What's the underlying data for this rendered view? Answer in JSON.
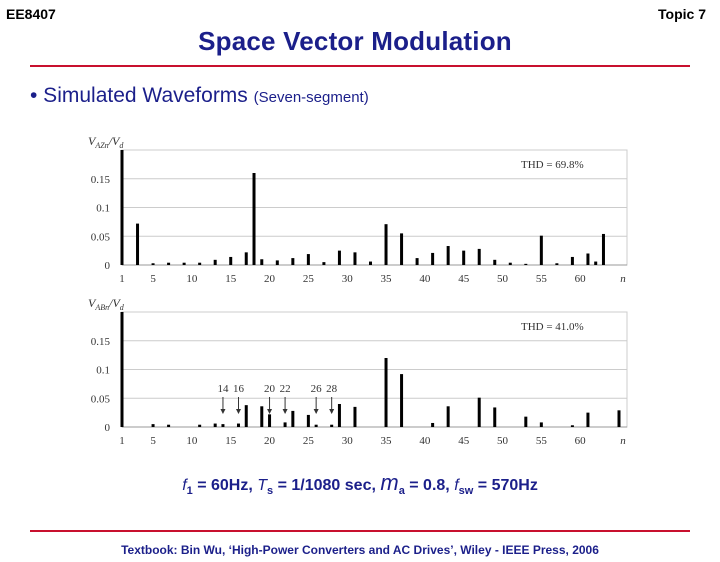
{
  "header": {
    "course": "EE8407",
    "topic": "Topic 7",
    "title": "Space Vector Modulation"
  },
  "bullet": {
    "text": "• Simulated Waveforms",
    "sub": "(Seven-segment)"
  },
  "params": {
    "f1_sym": "f",
    "f1_sub": "1",
    "f1_val": " = 60Hz, ",
    "ts_sym": "T",
    "ts_sub": "s",
    "ts_val": " = 1/1080 sec, ",
    "ma_sym": "m",
    "ma_sub": "a",
    "ma_val": " = 0.8, ",
    "fsw_sym": "f",
    "fsw_sub": "sw",
    "fsw_val": " = 570Hz"
  },
  "footer": "Textbook: Bin Wu, ‘High-Power Converters and AC Drives’, Wiley - IEEE Press, 2006",
  "colors": {
    "title": "#1b1f8a",
    "rule": "#c8102e",
    "bar": "#000000",
    "grid": "#cccccc"
  },
  "chart_data": [
    {
      "type": "bar",
      "ylabel_main": "V",
      "ylabel_sub": "AZn",
      "ylabel_den": "/V",
      "ylabel_den_sub": "d",
      "thd": "THD = 69.8%",
      "xlabel": "n",
      "xticks": [
        "1",
        "5",
        "10",
        "15",
        "20",
        "25",
        "30",
        "35",
        "40",
        "45",
        "50",
        "55",
        "60"
      ],
      "yticks": [
        "0",
        "0.05",
        "0.1",
        "0.15"
      ],
      "ylim": [
        0,
        0.2
      ],
      "x": [
        1,
        3,
        5,
        7,
        9,
        11,
        13,
        15,
        17,
        18,
        19,
        21,
        23,
        25,
        27,
        29,
        31,
        33,
        35,
        37,
        39,
        41,
        43,
        45,
        47,
        49,
        51,
        53,
        55,
        57,
        59,
        61,
        62,
        63
      ],
      "values": [
        0.2,
        0.072,
        0.003,
        0.004,
        0.004,
        0.004,
        0.009,
        0.014,
        0.022,
        0.16,
        0.01,
        0.008,
        0.012,
        0.019,
        0.005,
        0.025,
        0.022,
        0.006,
        0.071,
        0.055,
        0.012,
        0.021,
        0.033,
        0.025,
        0.028,
        0.009,
        0.004,
        0.002,
        0.051,
        0.003,
        0.014,
        0.02,
        0.006,
        0.054
      ]
    },
    {
      "type": "bar",
      "ylabel_main": "V",
      "ylabel_sub": "ABn",
      "ylabel_den": "/V",
      "ylabel_den_sub": "d",
      "thd": "THD = 41.0%",
      "xlabel": "n",
      "xticks": [
        "1",
        "5",
        "10",
        "15",
        "20",
        "25",
        "30",
        "35",
        "40",
        "45",
        "50",
        "55",
        "60"
      ],
      "yticks": [
        "0",
        "0.05",
        "0.1",
        "0.15"
      ],
      "ylim": [
        0,
        0.2
      ],
      "x": [
        1,
        5,
        7,
        11,
        13,
        14,
        16,
        17,
        19,
        20,
        22,
        23,
        25,
        26,
        28,
        29,
        31,
        35,
        37,
        41,
        43,
        47,
        49,
        53,
        55,
        59,
        61,
        65
      ],
      "values": [
        0.2,
        0.005,
        0.004,
        0.004,
        0.006,
        0.005,
        0.006,
        0.038,
        0.036,
        0.022,
        0.008,
        0.028,
        0.021,
        0.004,
        0.004,
        0.04,
        0.035,
        0.12,
        0.092,
        0.007,
        0.036,
        0.051,
        0.034,
        0.018,
        0.008,
        0.003,
        0.025,
        0.029
      ],
      "annotations": [
        "14",
        "16",
        "20",
        "22",
        "26",
        "28"
      ],
      "annotation_x": [
        14,
        16,
        20,
        22,
        26,
        28
      ]
    }
  ]
}
